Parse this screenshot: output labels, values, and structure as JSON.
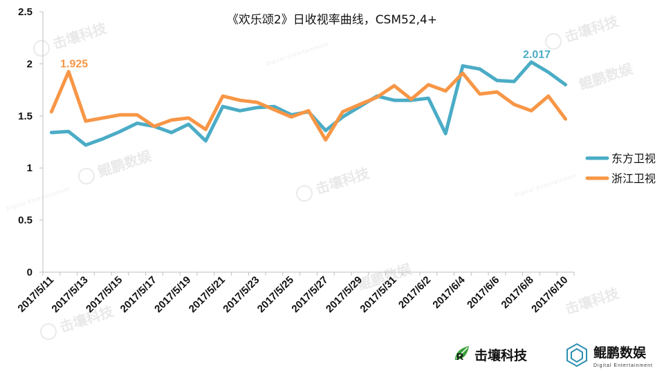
{
  "chart_data": {
    "type": "line",
    "title": "《欢乐颂2》日收视率曲线，CSM52,4+",
    "x": [
      "2017/5/11",
      "2017/5/12",
      "2017/5/13",
      "2017/5/14",
      "2017/5/15",
      "2017/5/16",
      "2017/5/17",
      "2017/5/18",
      "2017/5/19",
      "2017/5/20",
      "2017/5/21",
      "2017/5/22",
      "2017/5/23",
      "2017/5/24",
      "2017/5/25",
      "2017/5/26",
      "2017/5/27",
      "2017/5/28",
      "2017/5/29",
      "2017/5/30",
      "2017/5/31",
      "2017/6/1",
      "2017/6/2",
      "2017/6/3",
      "2017/6/4",
      "2017/6/5",
      "2017/6/6",
      "2017/6/7",
      "2017/6/8",
      "2017/6/9",
      "2017/6/10"
    ],
    "xtick_labels": [
      "2017/5/11",
      "2017/5/13",
      "2017/5/15",
      "2017/5/17",
      "2017/5/19",
      "2017/5/21",
      "2017/5/23",
      "2017/5/25",
      "2017/5/27",
      "2017/5/29",
      "2017/5/31",
      "2017/6/2",
      "2017/6/4",
      "2017/6/6",
      "2017/6/8",
      "2017/6/10"
    ],
    "ylim": [
      0,
      2.5
    ],
    "yticks": [
      0,
      0.5,
      1,
      1.5,
      2,
      2.5
    ],
    "ytick_labels": [
      "0",
      "0.5",
      "1",
      "1.5",
      "2",
      "2.5"
    ],
    "grid": false,
    "legend_position": "right",
    "series": [
      {
        "name": "东方卫视",
        "color": "#4bacc6",
        "values": [
          1.34,
          1.35,
          1.22,
          1.28,
          1.35,
          1.43,
          1.4,
          1.34,
          1.42,
          1.26,
          1.59,
          1.55,
          1.58,
          1.59,
          1.51,
          1.54,
          1.36,
          1.49,
          1.59,
          1.69,
          1.65,
          1.65,
          1.67,
          1.33,
          1.98,
          1.95,
          1.84,
          1.83,
          2.017,
          1.92,
          1.8
        ]
      },
      {
        "name": "浙江卫视",
        "color": "#f79646",
        "values": [
          1.54,
          1.925,
          1.45,
          1.48,
          1.51,
          1.51,
          1.4,
          1.46,
          1.48,
          1.37,
          1.69,
          1.65,
          1.63,
          1.56,
          1.49,
          1.55,
          1.27,
          1.54,
          1.61,
          1.68,
          1.79,
          1.66,
          1.8,
          1.74,
          1.91,
          1.71,
          1.73,
          1.61,
          1.55,
          1.69,
          1.47
        ]
      }
    ],
    "annotations": [
      {
        "text": "1.925",
        "series": "浙江卫视",
        "x": "2017/5/12",
        "color": "#f79646"
      },
      {
        "text": "2.017",
        "series": "东方卫视",
        "x": "2017/6/8",
        "color": "#4bacc6"
      }
    ]
  },
  "watermarks": {
    "brand_text": "击壤科技",
    "brand_sub": "Digital Entertainment",
    "brand2_text": "鲲鹏数娱"
  },
  "logos": {
    "jirang": {
      "label": "击壤科技",
      "icon": "leaf-logo-icon",
      "color": "#3aa03a"
    },
    "kunpeng": {
      "label": "鲲鹏数娱",
      "sub": "Digital Entertainment",
      "icon": "hexagon-logo-icon",
      "color": "#2b8fb0"
    }
  }
}
